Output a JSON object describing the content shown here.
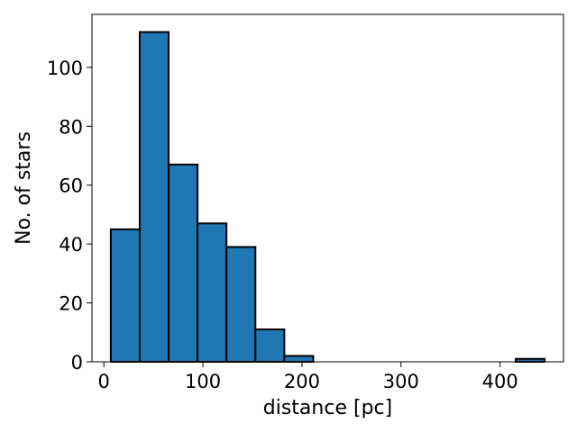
{
  "chart_data": {
    "type": "bar",
    "title": "",
    "xlabel": "distance [pc]",
    "ylabel": "No. of stars",
    "xlim": [
      -12,
      464
    ],
    "ylim": [
      0,
      118
    ],
    "xticks": [
      0,
      100,
      200,
      300,
      400
    ],
    "yticks": [
      0,
      20,
      40,
      60,
      80,
      100
    ],
    "grid": false,
    "bin_edges": [
      7,
      36.2,
      65.4,
      94.6,
      123.8,
      153.0,
      182.2,
      211.4,
      240.6,
      269.8,
      299.0,
      328.2,
      357.4,
      386.6,
      415.8,
      445.0
    ],
    "counts": [
      45,
      112,
      67,
      47,
      39,
      11,
      2,
      0,
      0,
      0,
      0,
      0,
      0,
      0,
      1
    ],
    "bar_color": "#1f77b4",
    "edge_color": "#000000"
  }
}
